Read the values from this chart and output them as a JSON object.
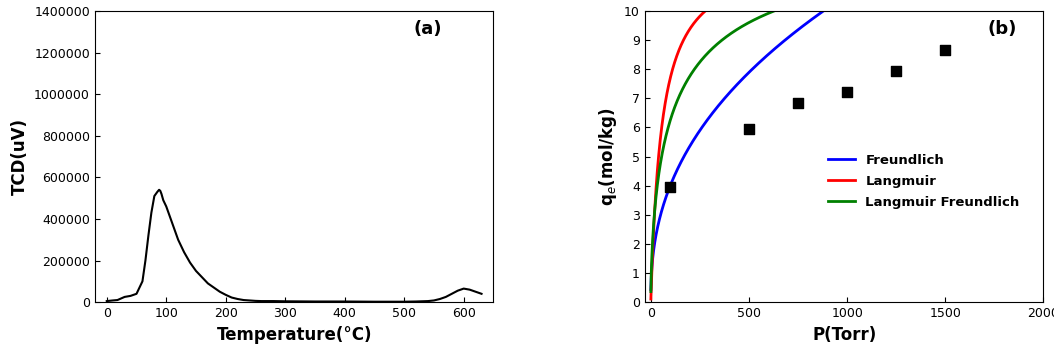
{
  "panel_a": {
    "label": "(a)",
    "xlabel": "Temperature(°C)",
    "ylabel": "TCD(uV)",
    "xlim": [
      -20,
      650
    ],
    "ylim": [
      0,
      1400000
    ],
    "yticks": [
      0,
      200000,
      400000,
      600000,
      800000,
      1000000,
      1200000,
      1400000
    ],
    "xticks": [
      0,
      100,
      200,
      300,
      400,
      500,
      600
    ],
    "tpd_x": [
      0,
      10,
      18,
      22,
      30,
      40,
      50,
      60,
      65,
      70,
      75,
      80,
      85,
      88,
      90,
      92,
      95,
      100,
      105,
      110,
      120,
      130,
      140,
      150,
      160,
      170,
      180,
      190,
      200,
      210,
      220,
      230,
      240,
      250,
      260,
      270,
      280,
      300,
      350,
      400,
      450,
      500,
      520,
      540,
      550,
      560,
      570,
      580,
      590,
      600,
      610,
      620,
      630
    ],
    "tpd_y": [
      5000,
      8000,
      10000,
      15000,
      25000,
      30000,
      40000,
      100000,
      200000,
      320000,
      430000,
      510000,
      530000,
      540000,
      535000,
      520000,
      490000,
      460000,
      420000,
      380000,
      300000,
      240000,
      190000,
      150000,
      120000,
      90000,
      70000,
      50000,
      35000,
      22000,
      15000,
      10000,
      8000,
      6000,
      5000,
      5000,
      5000,
      4000,
      3000,
      3000,
      2000,
      2000,
      3000,
      5000,
      8000,
      15000,
      25000,
      40000,
      55000,
      65000,
      60000,
      50000,
      40000
    ],
    "line_color": "#000000",
    "line_width": 1.5
  },
  "panel_b": {
    "label": "(b)",
    "xlabel": "P(Torr)",
    "ylabel": "q$_e$(mol/kg)",
    "xlim": [
      -30,
      2000
    ],
    "ylim": [
      0,
      10
    ],
    "yticks": [
      0,
      1,
      2,
      3,
      4,
      5,
      6,
      7,
      8,
      9,
      10
    ],
    "xticks": [
      0,
      500,
      1000,
      1500,
      2000
    ],
    "data_x": [
      100,
      500,
      750,
      1000,
      1250,
      1500
    ],
    "data_y": [
      3.95,
      5.95,
      6.85,
      7.2,
      7.95,
      8.65
    ],
    "freundlich_color": "#0000ff",
    "langmuir_color": "#ff0000",
    "langmuir_freundlich_color": "#008000",
    "freundlich_params": {
      "kf": 0.58,
      "n": 0.42
    },
    "langmuir_params": {
      "qm": 12.0,
      "b": 0.018
    },
    "langmuir_freundlich_params": {
      "qm": 13.5,
      "b": 0.008,
      "n": 0.65
    },
    "line_width": 2.0,
    "marker_color": "#000000",
    "marker_size": 7,
    "legend_entries": [
      "Freundlich",
      "Langmuir",
      "Langmuir Freundlich"
    ]
  }
}
